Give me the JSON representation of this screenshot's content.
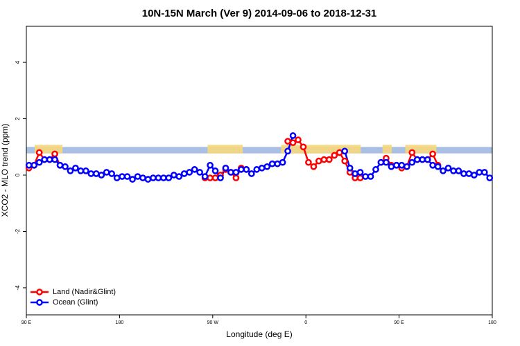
{
  "chart_data": {
    "type": "line",
    "title": "10N-15N March (Ver 9)   2014-09-06 to 2018-12-31",
    "x_label": "Longitude (deg E)",
    "y_label": "XCO2 - MLO trend (ppm)",
    "xlim": [
      90,
      540
    ],
    "xticks": [
      {
        "value": 90,
        "label": "90 E"
      },
      180,
      {
        "value": 270,
        "label": "90 W"
      },
      {
        "value": 360,
        "label": "0"
      },
      {
        "value": 450,
        "label": "90 E"
      },
      {
        "value": 540,
        "label": "180"
      }
    ],
    "ylim": [
      -4.96,
      5.28
    ],
    "yticks": [
      -4,
      -2,
      0,
      2,
      4
    ],
    "legend": "bottom-left",
    "mask_band": {
      "ylim": [
        0.77,
        1.0
      ],
      "color": "#a9bfe3"
    },
    "land_regions": {
      "color": "#f6d77c",
      "ranges": [
        [
          98,
          125
        ],
        [
          265,
          299
        ],
        [
          336,
          413
        ],
        [
          434,
          443
        ],
        [
          456,
          486
        ]
      ]
    },
    "x": [
      92.5,
      97.5,
      102.5,
      107.5,
      112.5,
      117.5,
      122.5,
      127.5,
      132.5,
      137.5,
      142.5,
      147.5,
      152.5,
      157.5,
      162.5,
      167.5,
      172.5,
      177.5,
      182.5,
      187.5,
      192.5,
      197.5,
      202.5,
      207.5,
      212.5,
      217.5,
      222.5,
      227.5,
      232.5,
      237.5,
      242.5,
      247.5,
      252.5,
      257.5,
      262.5,
      267.5,
      272.5,
      277.5,
      282.5,
      287.5,
      292.5,
      297.5,
      302.5,
      307.5,
      312.5,
      317.5,
      322.5,
      327.5,
      332.5,
      337.5,
      342.5,
      347.5,
      352.5,
      357.5,
      362.5,
      367.5,
      372.5,
      377.5,
      382.5,
      387.5,
      392.5,
      397.5,
      402.5,
      407.5,
      412.5,
      417.5,
      422.5,
      427.5,
      432.5,
      437.5,
      442.5,
      447.5,
      452.5,
      457.5,
      462.5,
      467.5,
      472.5,
      477.5,
      482.5,
      487.5,
      492.5,
      497.5,
      502.5,
      507.5,
      512.5,
      517.5,
      522.5,
      527.5,
      532.5,
      537.5
    ],
    "series": [
      {
        "name": "Land (Nadir&Glint)",
        "color": "#ff0000",
        "values": [
          0.25,
          0.35,
          0.8,
          0.55,
          0.55,
          0.75,
          0.35,
          null,
          null,
          null,
          null,
          null,
          null,
          null,
          null,
          null,
          null,
          null,
          null,
          null,
          null,
          null,
          null,
          null,
          null,
          null,
          null,
          null,
          null,
          null,
          null,
          null,
          null,
          null,
          -0.1,
          -0.1,
          -0.1,
          0.0,
          0.2,
          0.1,
          -0.1,
          0.25,
          0.2,
          null,
          null,
          null,
          null,
          null,
          null,
          null,
          1.2,
          1.15,
          1.25,
          1.0,
          0.45,
          0.3,
          0.5,
          0.55,
          0.55,
          0.7,
          0.8,
          0.5,
          0.1,
          -0.1,
          -0.1,
          null,
          null,
          null,
          0.45,
          0.6,
          0.35,
          0.35,
          0.25,
          0.3,
          0.8,
          0.55,
          0.55,
          0.55,
          0.75,
          0.35,
          null,
          null,
          null,
          null,
          null,
          null,
          null,
          null,
          null,
          null
        ]
      },
      {
        "name": "Ocean (Glint)",
        "color": "#0000ff",
        "values": [
          0.35,
          0.35,
          0.45,
          0.55,
          0.55,
          0.55,
          0.35,
          0.3,
          0.15,
          0.25,
          0.15,
          0.15,
          0.05,
          0.05,
          0.0,
          0.1,
          0.05,
          -0.1,
          -0.05,
          -0.05,
          -0.15,
          -0.05,
          -0.1,
          -0.15,
          -0.1,
          -0.1,
          -0.1,
          -0.1,
          0.0,
          -0.05,
          0.05,
          0.1,
          0.2,
          0.1,
          -0.05,
          0.35,
          0.15,
          -0.1,
          0.25,
          0.1,
          0.1,
          0.2,
          0.2,
          0.05,
          0.2,
          0.25,
          0.3,
          0.4,
          0.4,
          0.45,
          0.85,
          1.4,
          null,
          null,
          null,
          null,
          null,
          null,
          null,
          null,
          null,
          0.85,
          0.25,
          0.05,
          0.1,
          -0.05,
          -0.05,
          0.2,
          0.45,
          0.45,
          0.3,
          0.35,
          0.35,
          0.3,
          0.45,
          0.55,
          0.55,
          0.55,
          0.35,
          0.3,
          0.15,
          0.25,
          0.15,
          0.15,
          0.05,
          0.05,
          0.0,
          0.1,
          0.1,
          -0.1
        ]
      }
    ]
  }
}
